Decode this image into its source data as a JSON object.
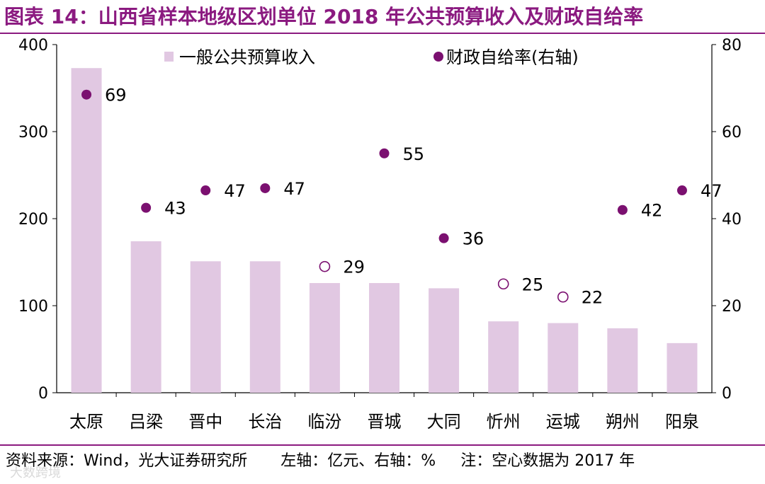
{
  "figure_title": "图表 14：山西省样本地级区划单位 2018 年公共预算收入及财政自给率",
  "footer": {
    "source": "资料来源：Wind，光大证券研究所",
    "units": "左轴：亿元、右轴：%",
    "note": "注：空心数据为 2017 年"
  },
  "watermark": "大数跨境",
  "colors": {
    "bar": "#e1c8e2",
    "dot": "#7b1070",
    "title": "#8B1A80"
  },
  "chart_data": {
    "type": "bar",
    "title": "山西省样本地级区划单位 2018 年公共预算收入及财政自给率",
    "categories": [
      "太原",
      "吕梁",
      "晋中",
      "长治",
      "临汾",
      "晋城",
      "大同",
      "忻州",
      "运城",
      "朔州",
      "阳泉"
    ],
    "series": [
      {
        "name": "一般公共预算收入",
        "type": "bar",
        "axis": "left",
        "values": [
          373,
          174,
          151,
          151,
          126,
          126,
          120,
          82,
          80,
          74,
          57
        ]
      },
      {
        "name": "财政自给率(右轴)",
        "type": "scatter",
        "axis": "right",
        "values": [
          69,
          43,
          47,
          47,
          29,
          55,
          36,
          25,
          22,
          42,
          47
        ],
        "display_values": [
          68.5,
          42.5,
          46.5,
          47,
          29,
          55,
          35.5,
          25,
          22,
          42,
          46.5
        ],
        "labels": [
          "69",
          "43",
          "47",
          "47",
          "29",
          "55",
          "36",
          "25",
          "22",
          "42",
          "47"
        ],
        "hollow": [
          false,
          false,
          false,
          false,
          true,
          false,
          false,
          true,
          true,
          false,
          false
        ]
      }
    ],
    "y_left": {
      "min": 0,
      "max": 400,
      "ticks": [
        "0",
        "100",
        "200",
        "300",
        "400"
      ]
    },
    "y_right": {
      "min": 0,
      "max": 80,
      "ticks": [
        "0",
        "20",
        "40",
        "60",
        "80"
      ]
    },
    "legend_position": "top-center"
  }
}
